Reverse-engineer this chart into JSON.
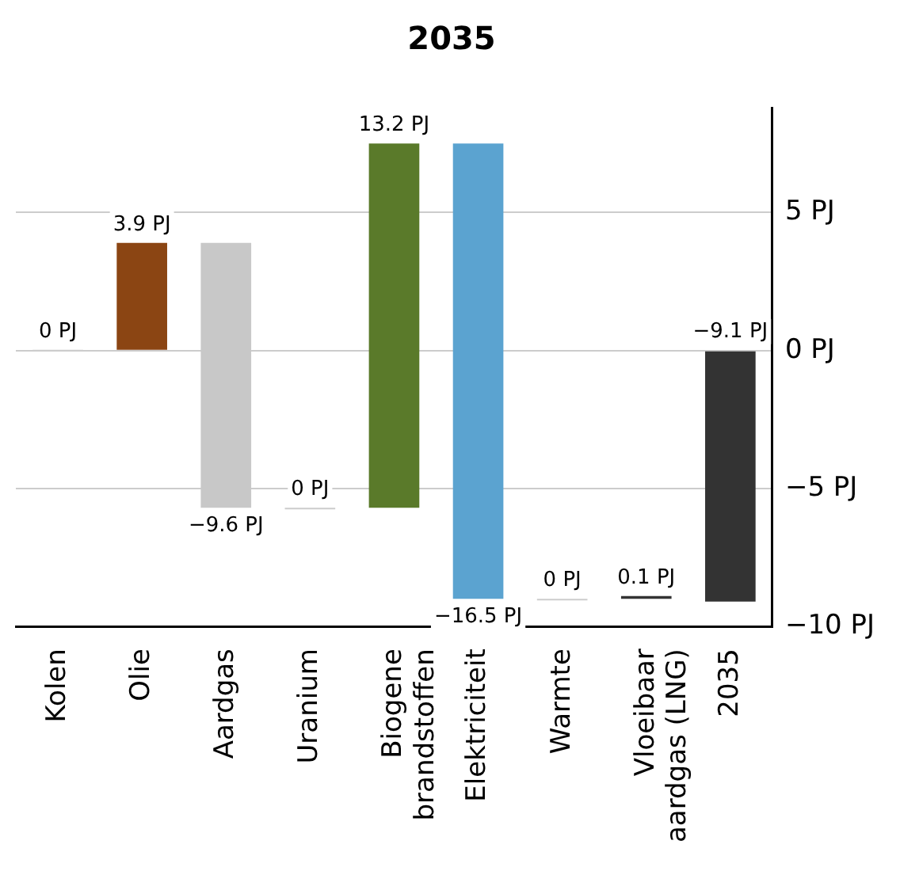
{
  "chart_data": {
    "type": "bar",
    "title": "2035",
    "categories": [
      "Kolen",
      "Olie",
      "Aardgas",
      "Uranium",
      "Biogene brandstoffen",
      "Elektriciteit",
      "Warmte",
      "Vloeibaar aardgas (LNG)",
      "2035"
    ],
    "base": [
      0,
      0,
      3.9,
      -5.7,
      -5.7,
      7.5,
      -9.0,
      -9.0,
      0
    ],
    "values": [
      0,
      3.9,
      -9.6,
      0,
      13.2,
      -16.5,
      0,
      0.1,
      -9.1
    ],
    "colors": [
      "#cccccc",
      "#8b4513",
      "#c8c8c8",
      "#cccccc",
      "#5a7a2a",
      "#5ba3d0",
      "#cccccc",
      "#333333",
      "#333333"
    ],
    "value_labels": [
      "0 PJ",
      "3.9 PJ",
      "−9.6 PJ",
      "0 PJ",
      "13.2 PJ",
      "−16.5 PJ",
      "0 PJ",
      "0.1 PJ",
      "−9.1 PJ"
    ],
    "ylim": [
      -10,
      8.8
    ],
    "yticks": [
      {
        "value": 5,
        "label": "5 PJ"
      },
      {
        "value": 0,
        "label": "0 PJ"
      },
      {
        "value": -5,
        "label": "−5 PJ"
      },
      {
        "value": -10,
        "label": "−10 PJ"
      }
    ],
    "grid": "y",
    "legend": false
  }
}
